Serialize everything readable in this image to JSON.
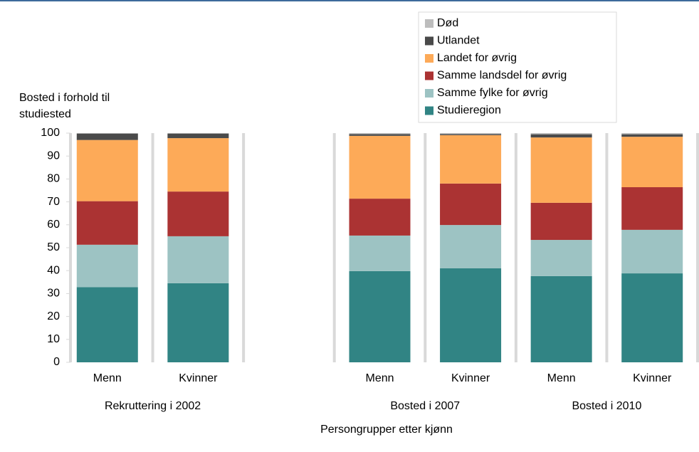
{
  "chart_data": {
    "type": "stacked_bar",
    "ylabel": "Bosted i forhold til studiested",
    "xlabel": "Persongrupper etter kjønn",
    "categories": [
      "Menn",
      "Kvinner",
      null,
      "Menn",
      "Kvinner",
      "Menn",
      "Kvinner"
    ],
    "group_labels": [
      "Rekruttering i 2002",
      "Bosted i 2007",
      "Bosted i 2010"
    ],
    "series": [
      {
        "name": "Studieregion",
        "color": "#318484",
        "values": [
          32.8,
          34.5,
          null,
          39.8,
          41,
          37.6,
          38.8
        ]
      },
      {
        "name": "Samme fylke for øvrig",
        "color": "#9dc3c3",
        "values": [
          18.5,
          20.5,
          null,
          15.5,
          18.9,
          15.8,
          19
        ]
      },
      {
        "name": "Samme landsdel for øvrig",
        "color": "#ab3333",
        "values": [
          19,
          19.5,
          null,
          16.1,
          18.1,
          16.2,
          18.6
        ]
      },
      {
        "name": "Landet for øvrig",
        "color": "#fdaa58",
        "values": [
          26.7,
          23.3,
          null,
          27.4,
          21.1,
          28.5,
          22
        ]
      },
      {
        "name": "Utlandet",
        "color": "#4a4a4a",
        "values": [
          2.8,
          2,
          null,
          0.8,
          0.5,
          1.4,
          1.1
        ]
      },
      {
        "name": "Død",
        "color": "#bdbdbd",
        "values": [
          0.2,
          0.2,
          null,
          0.4,
          0.4,
          0.5,
          0.5
        ]
      }
    ],
    "ylim": [
      0,
      100
    ],
    "yticks": [
      0,
      10,
      20,
      30,
      40,
      50,
      60,
      70,
      80,
      90,
      100
    ],
    "legend": "top-right"
  }
}
